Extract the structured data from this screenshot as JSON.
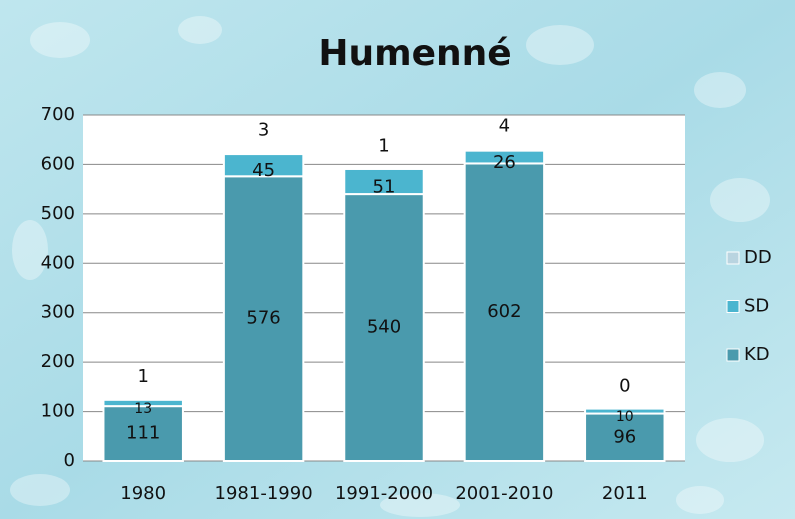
{
  "chart_data": {
    "type": "bar",
    "stacked": true,
    "title": "Humenné",
    "categories": [
      "1980",
      "1981-1990",
      "1991-2000",
      "2001-2010",
      "2011"
    ],
    "series": [
      {
        "name": "KD",
        "color": "#4a9aad",
        "values": [
          111,
          576,
          540,
          602,
          96
        ]
      },
      {
        "name": "SD",
        "color": "#4bb5cf",
        "values": [
          13,
          45,
          51,
          26,
          10
        ]
      },
      {
        "name": "DD",
        "color": "#b9d4e0",
        "values": [
          1,
          3,
          1,
          4,
          0
        ]
      }
    ],
    "ylim": [
      0,
      700
    ],
    "yticks": [
      0,
      100,
      200,
      300,
      400,
      500,
      600,
      700
    ],
    "grid": true,
    "legend": "right"
  }
}
